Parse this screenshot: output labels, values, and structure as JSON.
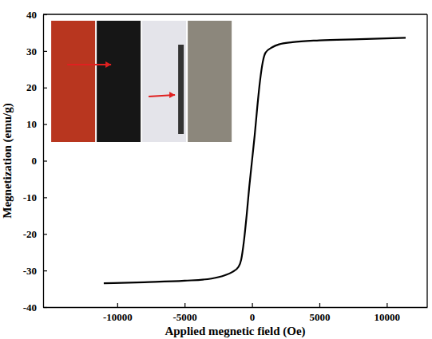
{
  "chart_data": {
    "type": "line",
    "x_label": "Applied megnetic field (Oe)",
    "y_label": "Megnetization (emu/g)",
    "x": [
      -11000,
      -8000,
      -5000,
      -3000,
      -2000,
      -1500,
      -1000,
      -800,
      -600,
      -400,
      -200,
      0,
      200,
      400,
      600,
      800,
      1000,
      1500,
      2000,
      3000,
      5000,
      8000,
      11400
    ],
    "series": [
      {
        "color": "#000000",
        "values": [
          -33.5,
          -33.2,
          -32.8,
          -32.2,
          -31.3,
          -30.5,
          -29.0,
          -27.0,
          -22.0,
          -15.0,
          -7.0,
          0,
          7.0,
          15.0,
          22.0,
          27.0,
          29.5,
          31.0,
          31.8,
          32.4,
          32.9,
          33.2,
          33.6
        ]
      }
    ],
    "xlim": [
      -15500,
      13000
    ],
    "xticks": [
      -10000,
      -5000,
      0,
      5000,
      10000
    ],
    "ylim": [
      -40,
      40
    ],
    "yticks": [
      -40,
      -30,
      -20,
      -10,
      0,
      10,
      20,
      30,
      40
    ],
    "grid": false
  }
}
